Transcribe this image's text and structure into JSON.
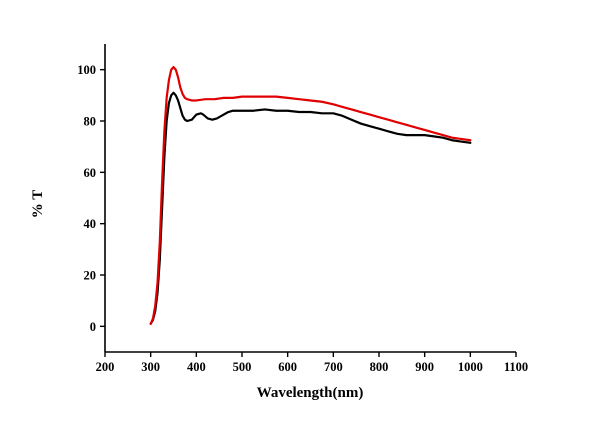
{
  "figure": {
    "background": "#ffffff"
  },
  "chart_data": {
    "type": "line",
    "title": "",
    "xlabel": "Wavelength(nm)",
    "ylabel": "% T",
    "xlim": [
      200,
      1100
    ],
    "ylim": [
      -10,
      110
    ],
    "x_ticks": [
      200,
      300,
      400,
      500,
      600,
      700,
      800,
      900,
      1000,
      1100
    ],
    "y_ticks": [
      0,
      20,
      40,
      60,
      80,
      100
    ],
    "grid": false,
    "legend": "none",
    "axis_color": "#000000",
    "series": [
      {
        "name": "black-curve",
        "color": "#000000",
        "points": [
          [
            300,
            1
          ],
          [
            305,
            2.5
          ],
          [
            310,
            6
          ],
          [
            315,
            13
          ],
          [
            320,
            26
          ],
          [
            325,
            46
          ],
          [
            330,
            66
          ],
          [
            335,
            80
          ],
          [
            340,
            87
          ],
          [
            345,
            90
          ],
          [
            350,
            91
          ],
          [
            355,
            90
          ],
          [
            360,
            88
          ],
          [
            365,
            85
          ],
          [
            370,
            82
          ],
          [
            375,
            80.5
          ],
          [
            380,
            80
          ],
          [
            390,
            80.5
          ],
          [
            400,
            82.5
          ],
          [
            410,
            83
          ],
          [
            415,
            82.5
          ],
          [
            425,
            81
          ],
          [
            435,
            80.5
          ],
          [
            445,
            81
          ],
          [
            460,
            82.5
          ],
          [
            470,
            83.5
          ],
          [
            480,
            84
          ],
          [
            500,
            84
          ],
          [
            525,
            84
          ],
          [
            550,
            84.5
          ],
          [
            575,
            84
          ],
          [
            600,
            84
          ],
          [
            625,
            83.5
          ],
          [
            650,
            83.5
          ],
          [
            675,
            83
          ],
          [
            700,
            83
          ],
          [
            720,
            82
          ],
          [
            740,
            80.5
          ],
          [
            760,
            79
          ],
          [
            780,
            78
          ],
          [
            800,
            77
          ],
          [
            820,
            76
          ],
          [
            840,
            75
          ],
          [
            860,
            74.5
          ],
          [
            880,
            74.5
          ],
          [
            900,
            74.5
          ],
          [
            920,
            74
          ],
          [
            940,
            73.5
          ],
          [
            960,
            72.5
          ],
          [
            980,
            72
          ],
          [
            1000,
            71.5
          ]
        ]
      },
      {
        "name": "red-curve",
        "color": "#e10000",
        "points": [
          [
            300,
            1
          ],
          [
            305,
            3
          ],
          [
            310,
            8
          ],
          [
            315,
            17
          ],
          [
            320,
            33
          ],
          [
            325,
            56
          ],
          [
            330,
            76
          ],
          [
            335,
            89
          ],
          [
            340,
            96
          ],
          [
            345,
            100
          ],
          [
            350,
            101
          ],
          [
            355,
            100
          ],
          [
            360,
            97
          ],
          [
            365,
            93
          ],
          [
            370,
            90.5
          ],
          [
            375,
            89
          ],
          [
            380,
            88.5
          ],
          [
            390,
            88
          ],
          [
            400,
            88
          ],
          [
            420,
            88.5
          ],
          [
            440,
            88.5
          ],
          [
            460,
            89
          ],
          [
            480,
            89
          ],
          [
            500,
            89.5
          ],
          [
            520,
            89.5
          ],
          [
            550,
            89.5
          ],
          [
            575,
            89.5
          ],
          [
            600,
            89
          ],
          [
            625,
            88.5
          ],
          [
            650,
            88
          ],
          [
            675,
            87.5
          ],
          [
            700,
            86.5
          ],
          [
            720,
            85.5
          ],
          [
            740,
            84.5
          ],
          [
            760,
            83.5
          ],
          [
            780,
            82.5
          ],
          [
            800,
            81.5
          ],
          [
            820,
            80.5
          ],
          [
            840,
            79.5
          ],
          [
            860,
            78.5
          ],
          [
            880,
            77.5
          ],
          [
            900,
            76.5
          ],
          [
            920,
            75.5
          ],
          [
            940,
            74.5
          ],
          [
            960,
            73.5
          ],
          [
            980,
            73
          ],
          [
            1000,
            72.5
          ]
        ]
      }
    ]
  }
}
